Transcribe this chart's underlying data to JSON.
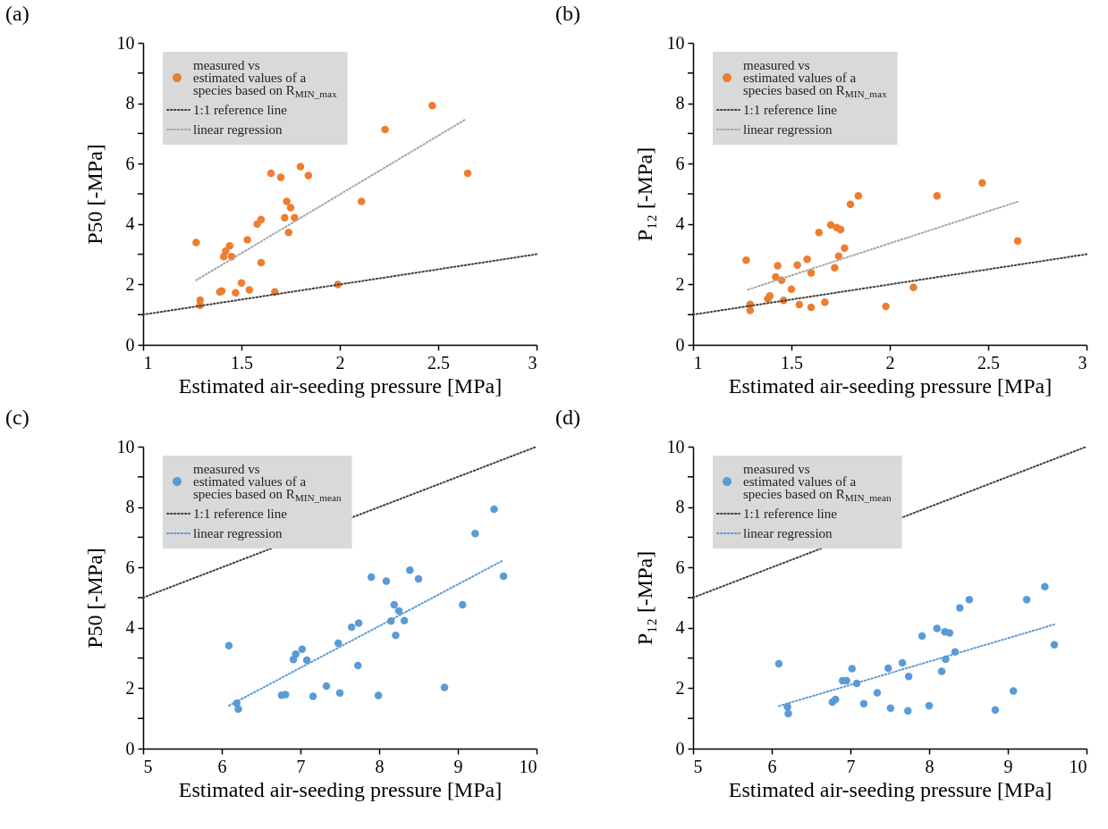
{
  "chart_data": [
    {
      "type": "scatter",
      "title": "(a)",
      "xlabel": "Estimated air-seeding pressure [MPa]",
      "ylabel": "P50 [-MPa]",
      "xlim": [
        1,
        3
      ],
      "ylim": [
        0,
        10
      ],
      "xticks": [
        1,
        1.5,
        2,
        2.5,
        3
      ],
      "yticks": [
        0,
        {
          "value": 1,
          "label": null
        },
        2,
        {
          "value": 3,
          "label": null
        },
        4,
        {
          "value": 5,
          "label": null
        },
        6,
        {
          "value": 7,
          "label": null
        },
        8,
        {
          "value": 9,
          "label": null
        },
        10
      ],
      "legend": "top left",
      "series": [
        {
          "name": "measured vs estimated values of a species based on R$_{MIN_max}$",
          "marker": "circle",
          "color": "#ed7d31",
          "x": [
            2.47,
            2.23,
            2.65,
            1.8,
            1.65,
            1.7,
            1.84,
            2.11,
            1.73,
            1.75,
            1.6,
            1.58,
            1.72,
            1.77,
            1.74,
            1.27,
            1.53,
            1.44,
            1.42,
            1.41,
            1.45,
            1.6,
            1.5,
            1.99,
            1.39,
            1.4,
            1.47,
            1.54,
            1.67,
            1.29,
            1.29
          ],
          "values": [
            7.92,
            7.13,
            5.68,
            5.9,
            5.68,
            5.55,
            5.61,
            4.75,
            4.75,
            4.54,
            4.15,
            4.0,
            4.21,
            4.21,
            3.72,
            3.39,
            3.48,
            3.28,
            3.11,
            2.92,
            2.92,
            2.72,
            2.05,
            2.0,
            1.75,
            1.78,
            1.72,
            1.82,
            1.75,
            1.48,
            1.31
          ]
        },
        {
          "name": "1:1 reference line",
          "type": "line",
          "color": "#404040",
          "line_style": "dotted",
          "x": [
            1,
            3
          ],
          "values": [
            1,
            3
          ]
        },
        {
          "name": "linear regression",
          "type": "line",
          "color": "#a6a6a6",
          "line_style": "dotted",
          "x": [
            1.27,
            2.64
          ],
          "values": [
            2.14,
            7.47
          ]
        }
      ]
    },
    {
      "type": "scatter",
      "title": "(b)",
      "xlabel": "Estimated air-seeding pressure [MPa]",
      "ylabel": "P₁₂ [-MPa]",
      "xlim": [
        1,
        3
      ],
      "ylim": [
        0,
        10
      ],
      "xticks": [
        1,
        1.5,
        2,
        2.5,
        3
      ],
      "yticks": [
        0,
        {
          "value": 1,
          "label": null
        },
        2,
        {
          "value": 3,
          "label": null
        },
        4,
        {
          "value": 5,
          "label": null
        },
        6,
        {
          "value": 7,
          "label": null
        },
        8,
        {
          "value": 9,
          "label": null
        },
        10
      ],
      "legend": "top left",
      "series": [
        {
          "name": "measured vs estimated values of a species based on R$_{MIN_max}$",
          "marker": "circle",
          "color": "#ed7d31",
          "x": [
            2.47,
            2.24,
            1.84,
            1.8,
            2.65,
            1.7,
            1.73,
            1.75,
            1.64,
            1.77,
            1.74,
            1.27,
            1.58,
            1.43,
            1.53,
            1.72,
            1.6,
            1.42,
            1.45,
            1.5,
            2.12,
            1.39,
            1.38,
            1.46,
            1.67,
            1.54,
            1.6,
            1.98,
            1.29,
            1.29
          ],
          "values": [
            5.36,
            4.93,
            4.93,
            4.65,
            3.44,
            3.97,
            3.88,
            3.82,
            3.72,
            3.2,
            2.94,
            2.8,
            2.83,
            2.62,
            2.64,
            2.55,
            2.38,
            2.25,
            2.14,
            1.84,
            1.9,
            1.62,
            1.52,
            1.47,
            1.41,
            1.33,
            1.24,
            1.27,
            1.34,
            1.14
          ]
        },
        {
          "name": "1:1 reference line",
          "type": "line",
          "color": "#404040",
          "line_style": "dotted",
          "x": [
            1,
            3
          ],
          "values": [
            1,
            3
          ]
        },
        {
          "name": "linear regression",
          "type": "line",
          "color": "#a6a6a6",
          "line_style": "dotted",
          "x": [
            1.28,
            2.65
          ],
          "values": [
            1.83,
            4.74
          ]
        }
      ]
    },
    {
      "type": "scatter",
      "title": "(c)",
      "xlabel": "Estimated air-seeding pressure [MPa]",
      "ylabel": "P50 [-MPa]",
      "xlim": [
        5,
        10
      ],
      "ylim": [
        0,
        10
      ],
      "xticks": [
        5,
        6,
        7,
        8,
        9,
        10
      ],
      "yticks": [
        0,
        {
          "value": 1,
          "label": null
        },
        2,
        {
          "value": 3,
          "label": null
        },
        4,
        {
          "value": 5,
          "label": null
        },
        6,
        {
          "value": 7,
          "label": null
        },
        8,
        {
          "value": 9,
          "label": null
        },
        10
      ],
      "legend": "top left",
      "series": [
        {
          "name": "measured vs estimated values of a species based on R$_{MIN_mean}$",
          "marker": "circle",
          "color": "#5b9bd5",
          "x": [
            9.46,
            9.22,
            9.58,
            7.9,
            8.09,
            8.39,
            8.5,
            9.06,
            8.19,
            8.25,
            7.74,
            7.65,
            8.15,
            8.32,
            8.21,
            6.09,
            7.48,
            7.02,
            6.94,
            6.91,
            7.08,
            7.73,
            7.33,
            8.83,
            6.76,
            6.81,
            7.16,
            7.5,
            7.99,
            6.19,
            6.21
          ],
          "values": [
            7.93,
            7.12,
            5.71,
            5.68,
            5.55,
            5.91,
            5.62,
            4.76,
            4.76,
            4.56,
            4.16,
            4.02,
            4.22,
            4.24,
            3.75,
            3.41,
            3.49,
            3.29,
            3.13,
            2.95,
            2.93,
            2.75,
            2.07,
            2.03,
            1.77,
            1.79,
            1.73,
            1.84,
            1.76,
            1.5,
            1.31
          ]
        },
        {
          "name": "1:1 reference line",
          "type": "line",
          "color": "#404040",
          "line_style": "dotted",
          "x": [
            5,
            10
          ],
          "values": [
            5,
            10
          ]
        },
        {
          "name": "linear regression",
          "type": "line",
          "color": "#5b9bd5",
          "line_style": "dotted",
          "x": [
            6.09,
            9.58
          ],
          "values": [
            1.42,
            6.24
          ]
        }
      ]
    },
    {
      "type": "scatter",
      "title": "(d)",
      "xlabel": "Estimated air-seeding pressure [MPa]",
      "ylabel": "P₁₂ [-MPa]",
      "xlim": [
        5,
        10
      ],
      "ylim": [
        0,
        10
      ],
      "xticks": [
        5,
        6,
        7,
        8,
        9,
        10
      ],
      "yticks": [
        0,
        {
          "value": 1,
          "label": null
        },
        2,
        {
          "value": 3,
          "label": null
        },
        4,
        {
          "value": 5,
          "label": null
        },
        6,
        {
          "value": 7,
          "label": null
        },
        8,
        {
          "value": 9,
          "label": null
        },
        10
      ],
      "legend": "top left",
      "series": [
        {
          "name": "measured vs estimated values of a species based on R$_{MIN_mean}$",
          "marker": "circle",
          "color": "#5b9bd5",
          "x": [
            9.47,
            9.24,
            8.51,
            8.39,
            8.1,
            8.2,
            8.26,
            7.91,
            9.59,
            8.33,
            8.21,
            6.09,
            7.66,
            7.02,
            7.48,
            8.16,
            7.74,
            6.9,
            6.95,
            7.08,
            7.34,
            9.07,
            6.81,
            6.77,
            7.17,
            8.0,
            7.51,
            7.73,
            8.84,
            6.2,
            6.21
          ],
          "values": [
            5.36,
            4.93,
            4.93,
            4.66,
            3.98,
            3.87,
            3.83,
            3.73,
            3.44,
            3.2,
            2.96,
            2.81,
            2.84,
            2.65,
            2.66,
            2.56,
            2.39,
            2.25,
            2.25,
            2.16,
            1.85,
            1.91,
            1.63,
            1.54,
            1.49,
            1.42,
            1.34,
            1.25,
            1.28,
            1.38,
            1.16
          ]
        },
        {
          "name": "1:1 reference line",
          "type": "line",
          "color": "#404040",
          "line_style": "dotted",
          "x": [
            5,
            10
          ],
          "values": [
            5,
            10
          ]
        },
        {
          "name": "linear regression",
          "type": "line",
          "color": "#5b9bd5",
          "line_style": "dotted",
          "x": [
            6.09,
            9.59
          ],
          "values": [
            1.41,
            4.11
          ]
        }
      ]
    }
  ]
}
